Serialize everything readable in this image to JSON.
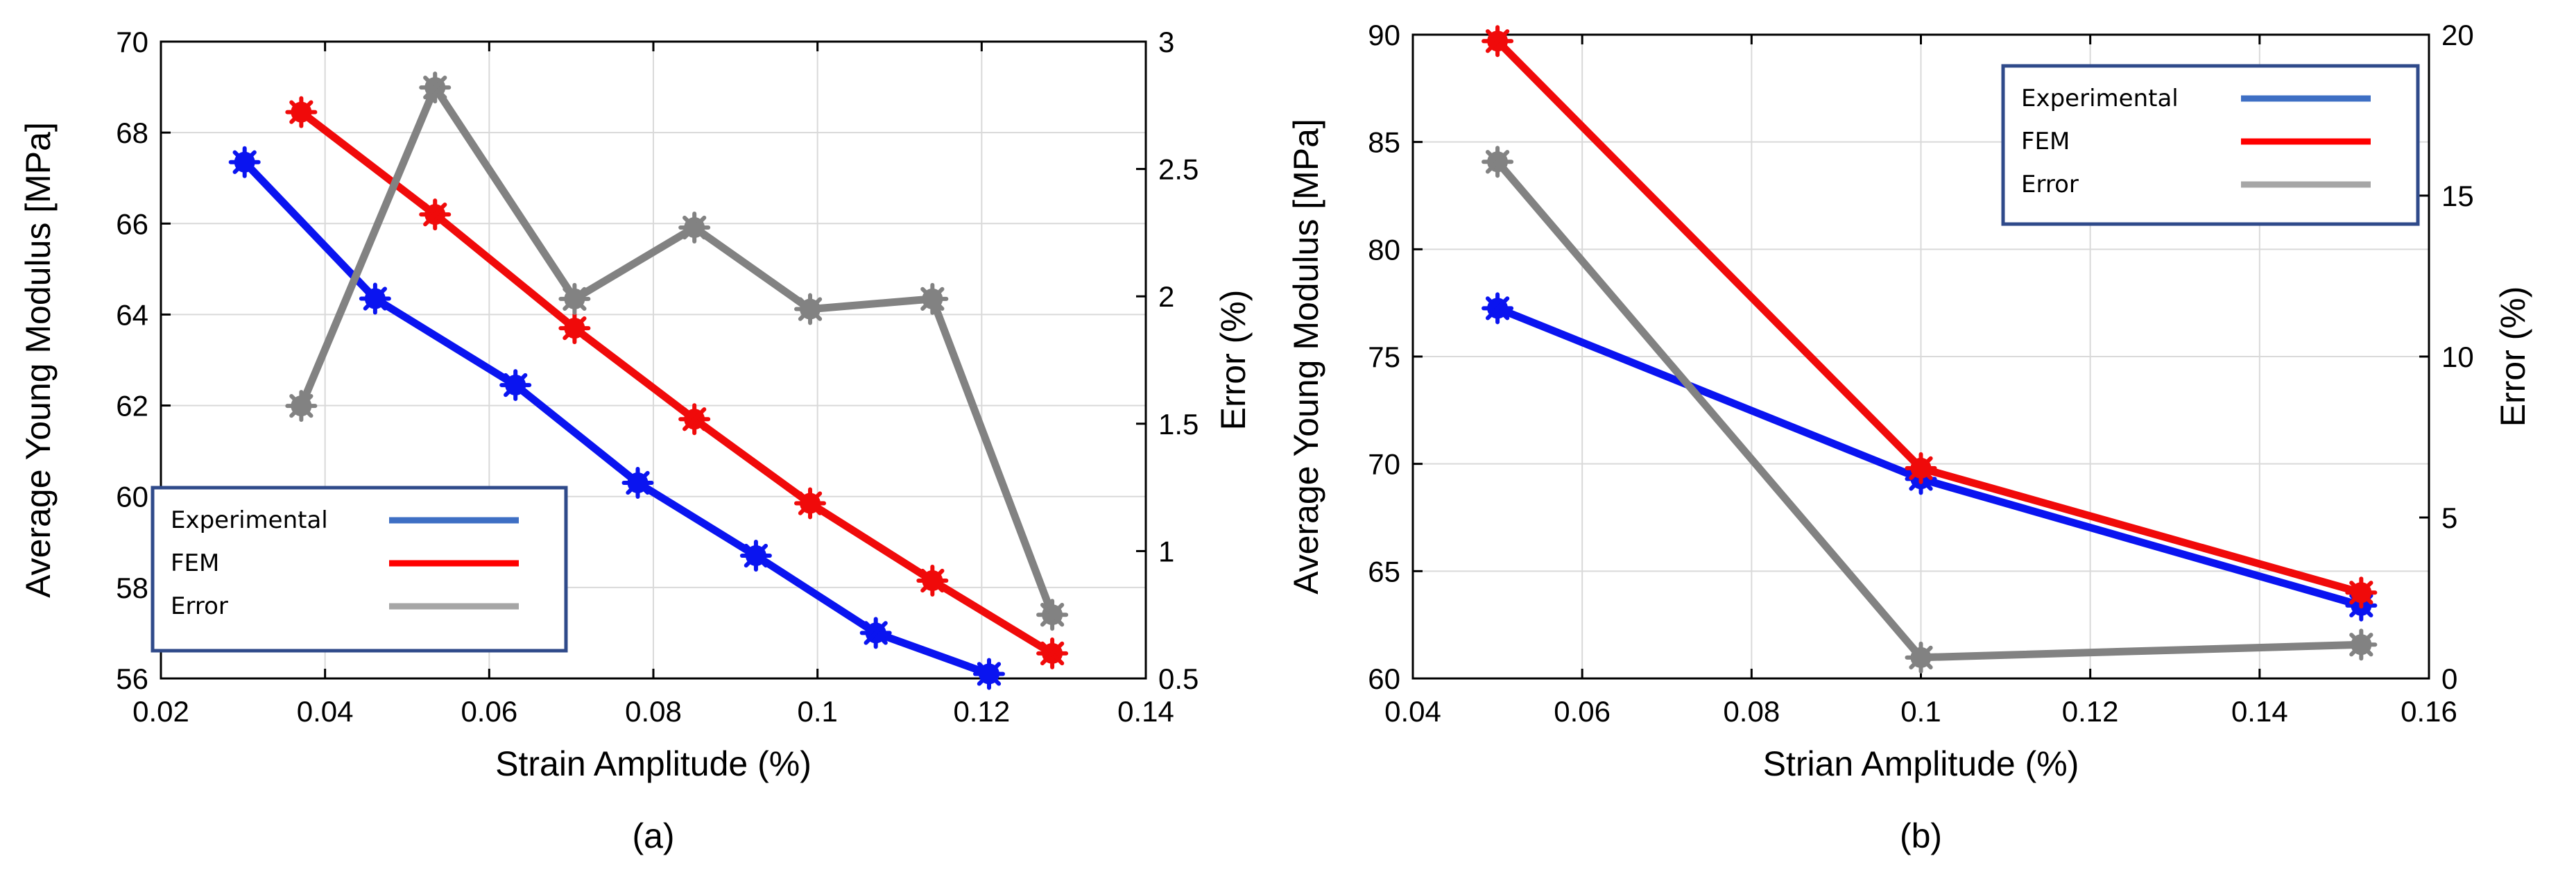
{
  "chart_data": [
    {
      "type": "line",
      "panel_label": "(a)",
      "xlabel": "Strain Amplitude (%)",
      "ylabel_left": "Average Young Modulus [MPa]",
      "ylabel_right": "Error (%)",
      "xlim": [
        0.02,
        0.14
      ],
      "ylim_left": [
        56,
        70
      ],
      "ylim_right": [
        0.5,
        3
      ],
      "xticks": [
        "0.02",
        "0.04",
        "0.06",
        "0.08",
        "0.1",
        "0.12",
        "0.14"
      ],
      "yticks_left": [
        "56",
        "58",
        "60",
        "62",
        "64",
        "66",
        "68",
        "70"
      ],
      "yticks_right": [
        "0.5",
        "1",
        "1.5",
        "2",
        "2.5",
        "3"
      ],
      "grid": true,
      "legend_position": "bottom-left",
      "series": [
        {
          "name": "Experimental",
          "axis": "left",
          "color": "#0a14f0",
          "x": [
            0.0302,
            0.0461,
            0.0632,
            0.0781,
            0.0925,
            0.1071,
            0.1209
          ],
          "y": [
            67.35,
            64.35,
            62.45,
            60.3,
            58.7,
            57.0,
            56.1
          ]
        },
        {
          "name": "FEM",
          "axis": "left",
          "color": "#f00a0a",
          "x": [
            0.0371,
            0.0534,
            0.0704,
            0.085,
            0.0991,
            0.114,
            0.1286
          ],
          "y": [
            68.45,
            66.2,
            63.7,
            61.7,
            59.85,
            58.15,
            56.55
          ]
        },
        {
          "name": "Error",
          "axis": "right",
          "color": "#828282",
          "x": [
            0.0371,
            0.0534,
            0.0704,
            0.085,
            0.0991,
            0.114,
            0.1286
          ],
          "y": [
            1.57,
            2.82,
            1.99,
            2.27,
            1.95,
            1.99,
            0.75
          ]
        }
      ]
    },
    {
      "type": "line",
      "panel_label": "(b)",
      "xlabel": "Strian Amplitude (%)",
      "ylabel_left": "Average Young Modulus [MPa]",
      "ylabel_right": "Error (%)",
      "xlim": [
        0.04,
        0.16
      ],
      "ylim_left": [
        60,
        90
      ],
      "ylim_right": [
        0,
        20
      ],
      "xticks": [
        "0.04",
        "0.06",
        "0.08",
        "0.1",
        "0.12",
        "0.14",
        "0.16"
      ],
      "yticks_left": [
        "60",
        "65",
        "70",
        "75",
        "80",
        "85",
        "90"
      ],
      "yticks_right": [
        "0",
        "5",
        "10",
        "15",
        "20"
      ],
      "grid": true,
      "legend_position": "top-right",
      "series": [
        {
          "name": "Experimental",
          "axis": "left",
          "color": "#0a14f0",
          "x": [
            0.05,
            0.1,
            0.152
          ],
          "y": [
            77.25,
            69.3,
            63.4
          ]
        },
        {
          "name": "FEM",
          "axis": "left",
          "color": "#f00a0a",
          "x": [
            0.05,
            0.1,
            0.152
          ],
          "y": [
            89.7,
            69.8,
            64.0
          ]
        },
        {
          "name": "Error",
          "axis": "right",
          "color": "#828282",
          "x": [
            0.05,
            0.1,
            0.152
          ],
          "y": [
            16.05,
            0.65,
            1.05
          ]
        }
      ]
    }
  ],
  "legend_line_colors": {
    "Experimental": "#3e6fc4",
    "FEM": "#ff0000",
    "Error": "#a6a6a6"
  },
  "legend_border_color": "#2f4a8a"
}
